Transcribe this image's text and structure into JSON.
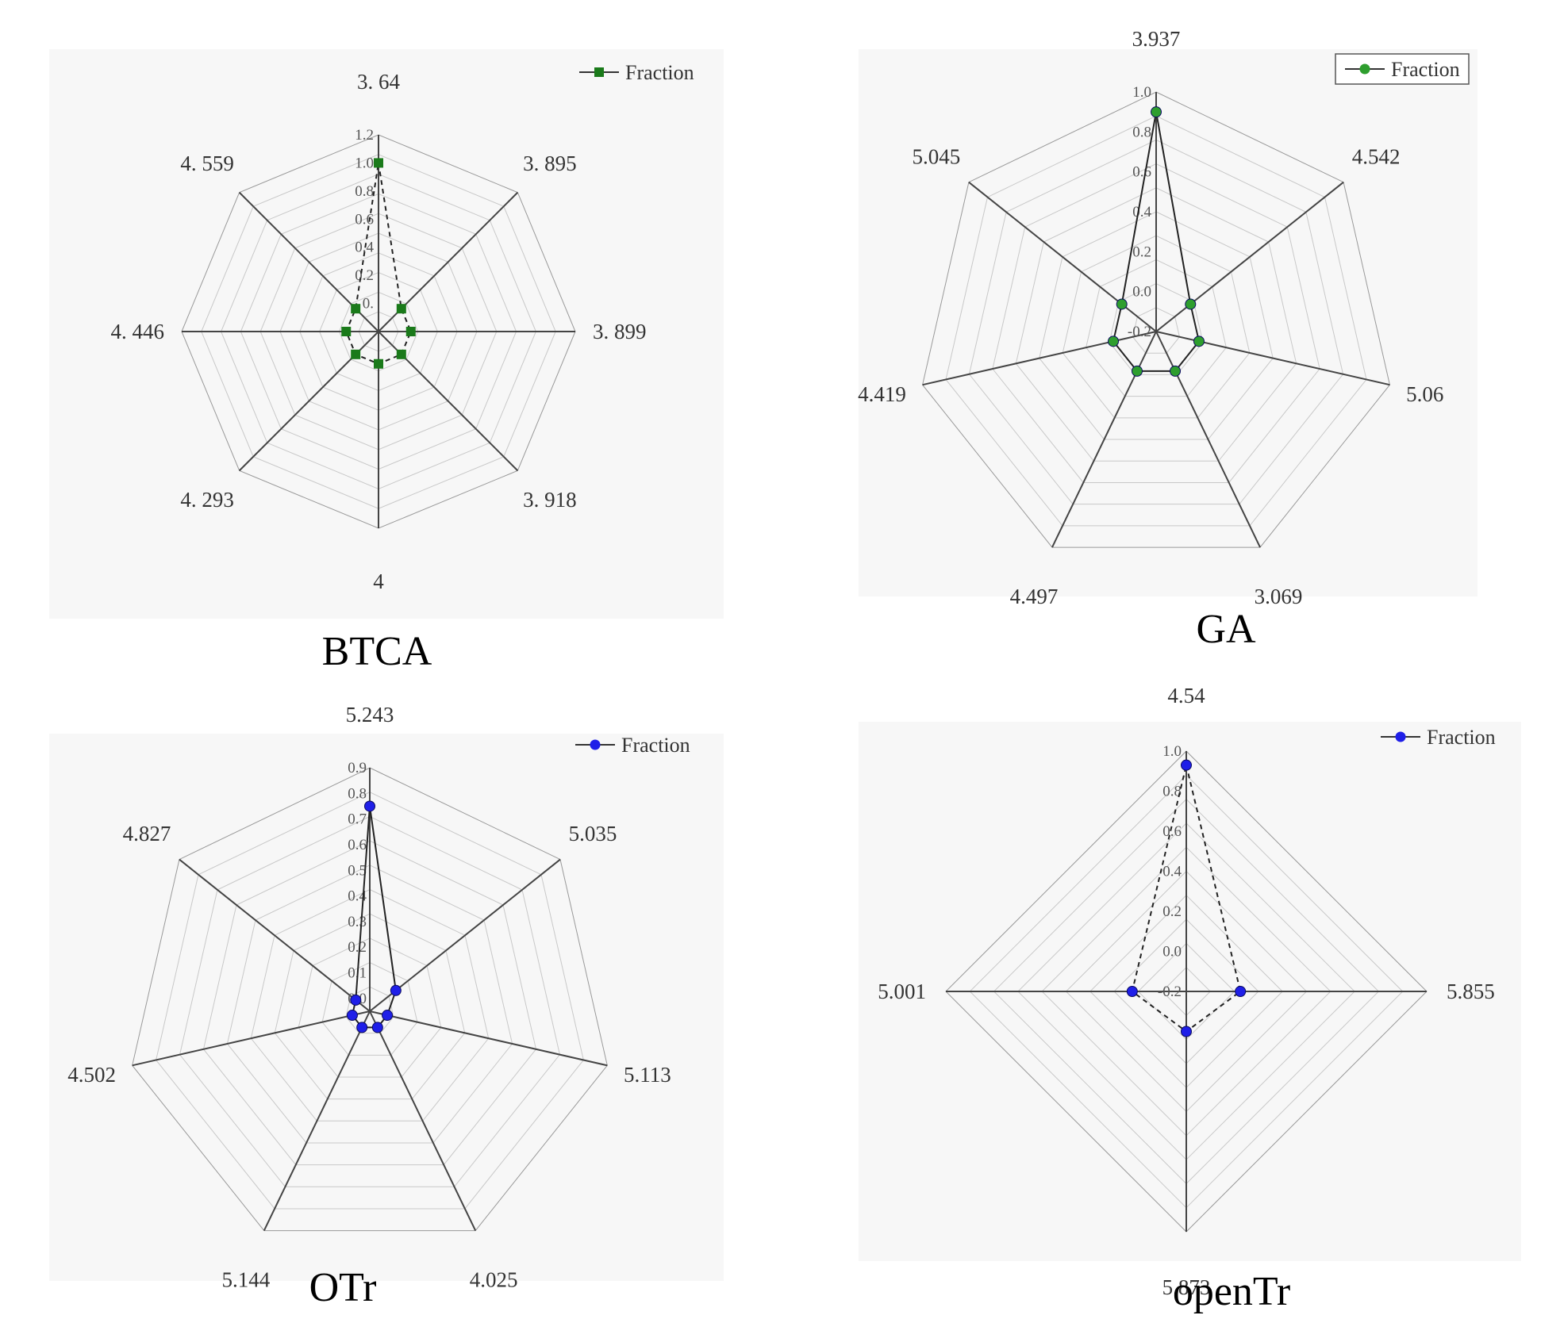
{
  "figure": {
    "legend_label": "Fraction"
  },
  "chart_data": [
    {
      "type": "radar",
      "title": "BTCA",
      "axes": [
        "3. 64",
        "3. 895",
        "3. 899",
        "3. 918",
        "4",
        "4. 293",
        "4. 446",
        "4. 559"
      ],
      "ticks": [
        "0.",
        "0.2",
        "0.4",
        "0.6",
        "0.8",
        "1.0",
        "1.2"
      ],
      "rmin": -0.2,
      "rmax": 1.2,
      "series": [
        {
          "name": "Fraction",
          "values": [
            1.0,
            0.03,
            0.03,
            0.03,
            0.03,
            0.03,
            0.03,
            0.03
          ],
          "color": "#1a7a1a",
          "marker": "square",
          "line_style": "dashed"
        }
      ],
      "legend": "top-right"
    },
    {
      "type": "radar",
      "title": "GA",
      "axes": [
        "3.937",
        "4.542",
        "5.06",
        "3.069",
        "4.497",
        "4.419",
        "5.045"
      ],
      "ticks": [
        "-0.2",
        "0.0",
        "0.2",
        "0.4",
        "0.6",
        "0.8",
        "1.0"
      ],
      "rmin": -0.2,
      "rmax": 1.0,
      "series": [
        {
          "name": "Fraction",
          "values": [
            0.9,
            0.02,
            0.02,
            0.02,
            0.02,
            0.02,
            0.02
          ],
          "color": "#2e9e2e",
          "marker": "circle",
          "line_style": "solid"
        }
      ],
      "legend": "top-right"
    },
    {
      "type": "radar",
      "title": "OTr",
      "axes": [
        "5.243",
        "5.035",
        "5.113",
        "4.025",
        "5.144",
        "4.502",
        "4.827"
      ],
      "ticks": [
        "0.0",
        "0.1",
        "0.2",
        "0.3",
        "0.4",
        "0.5",
        "0.6",
        "0.7",
        "0.8",
        "0.9"
      ],
      "rmin": -0.05,
      "rmax": 0.9,
      "series": [
        {
          "name": "Fraction",
          "values": [
            0.75,
            0.08,
            0.02,
            0.02,
            0.02,
            0.02,
            0.02
          ],
          "color": "#1f1fe8",
          "marker": "circle",
          "line_style": "solid"
        }
      ],
      "legend": "top-right"
    },
    {
      "type": "radar",
      "title": "openTr",
      "axes": [
        "4.54",
        "5.855",
        "5.873",
        "5.001"
      ],
      "ticks": [
        "-0.2",
        "0.0",
        "0.2",
        "0.4",
        "0.6",
        "0.8",
        "1.0"
      ],
      "rmin": -0.2,
      "rmax": 1.0,
      "series": [
        {
          "name": "Fraction",
          "values": [
            0.93,
            0.07,
            0.0,
            0.07
          ],
          "color": "#1f1fe8",
          "marker": "circle",
          "line_style": "dashed"
        }
      ],
      "legend": "top-right"
    }
  ]
}
